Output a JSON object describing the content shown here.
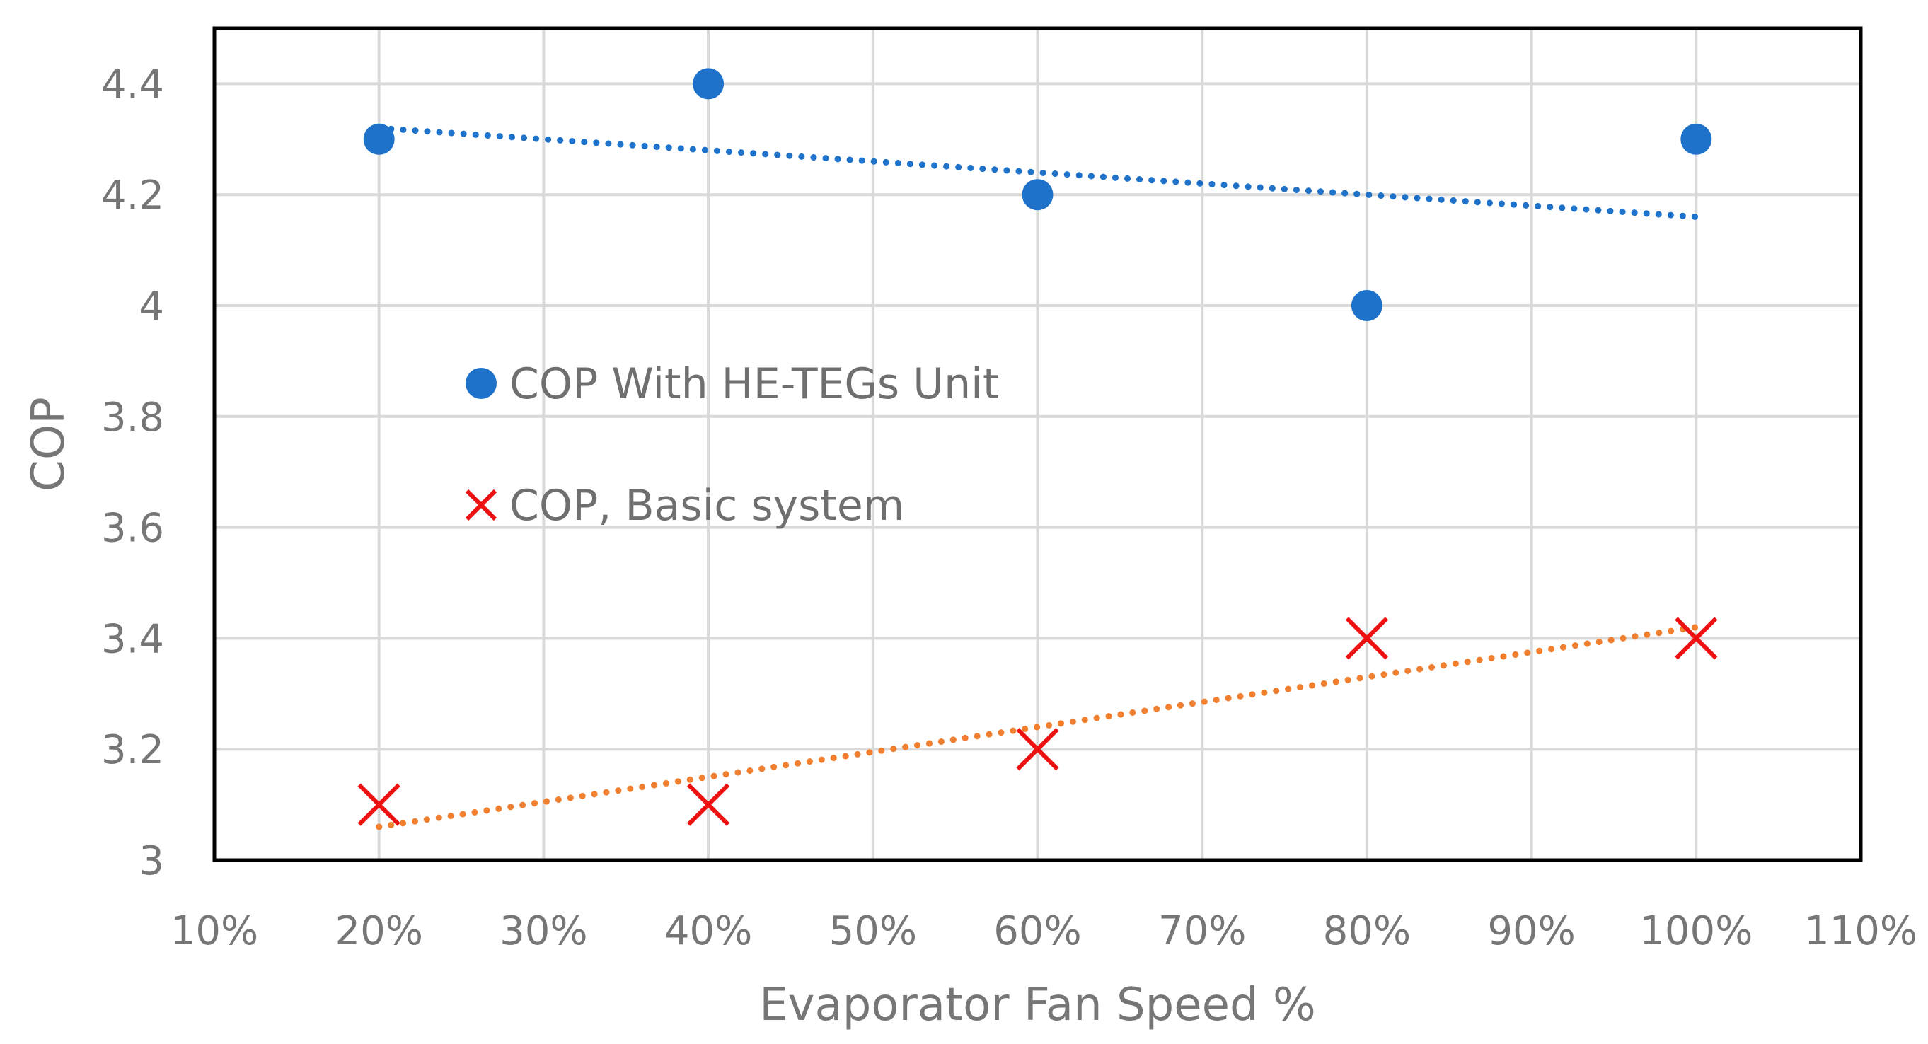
{
  "chart_data": {
    "type": "scatter",
    "title": "",
    "xlabel": "Evaporator Fan Speed %",
    "ylabel": "COP",
    "xlim": [
      10,
      110
    ],
    "ylim": [
      3,
      4.5
    ],
    "x_ticks": [
      10,
      20,
      30,
      40,
      50,
      60,
      70,
      80,
      90,
      100,
      110
    ],
    "x_tick_labels": [
      "10%",
      "20%",
      "30%",
      "40%",
      "50%",
      "60%",
      "70%",
      "80%",
      "90%",
      "100%",
      "110%"
    ],
    "y_ticks": [
      3,
      3.2,
      3.4,
      3.6,
      3.8,
      4,
      4.2,
      4.4
    ],
    "y_tick_labels": [
      "3",
      "3.2",
      "3.4",
      "3.6",
      "3.8",
      "4",
      "4.2",
      "4.4"
    ],
    "grid": true,
    "legend_position": "center-left",
    "series": [
      {
        "name": "COP With HE-TEGs Unit",
        "marker": "circle",
        "color": "#1F72C9",
        "x": [
          20,
          40,
          60,
          80,
          100
        ],
        "y": [
          4.3,
          4.4,
          4.2,
          4.0,
          4.3
        ],
        "trendline": {
          "type": "linear",
          "color": "#1F72C9",
          "style": "dotted",
          "x": [
            20,
            100
          ],
          "y": [
            4.32,
            4.16
          ]
        }
      },
      {
        "name": "COP, Basic system",
        "marker": "x",
        "color": "#EE1111",
        "x": [
          20,
          40,
          60,
          80,
          100
        ],
        "y": [
          3.1,
          3.1,
          3.2,
          3.4,
          3.4
        ],
        "trendline": {
          "type": "linear",
          "color": "#F08030",
          "style": "dotted",
          "x": [
            20,
            100
          ],
          "y": [
            3.06,
            3.42
          ]
        }
      }
    ]
  }
}
